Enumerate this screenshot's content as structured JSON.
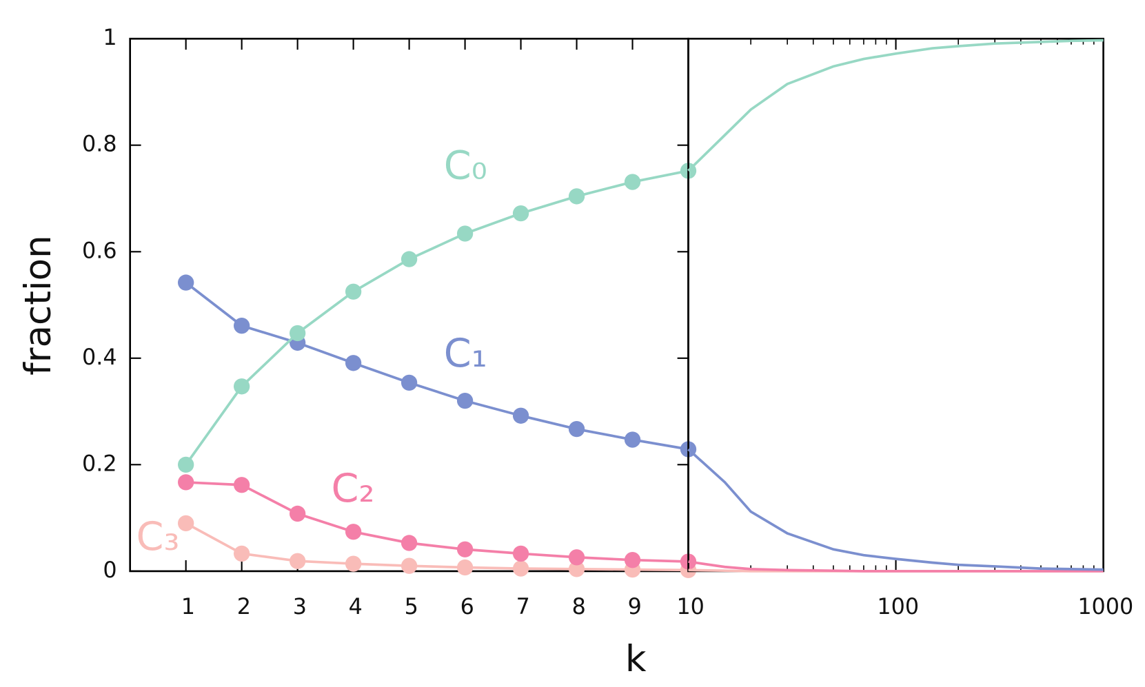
{
  "chart_data": [
    {
      "type": "line",
      "markers": true,
      "xlabel": "k",
      "ylabel": "fraction",
      "x": [
        1,
        2,
        3,
        4,
        5,
        6,
        7,
        8,
        9,
        10
      ],
      "xlim": [
        0,
        10
      ],
      "xticks": [
        1,
        2,
        3,
        4,
        5,
        6,
        7,
        8,
        9,
        10
      ],
      "ylim": [
        0,
        1
      ],
      "yticks": [
        0,
        0.2,
        0.4,
        0.6,
        0.8,
        1
      ],
      "grid": false,
      "series": [
        {
          "name": "C₀",
          "color": "#97d8c4",
          "values": [
            0.2,
            0.347,
            0.447,
            0.525,
            0.586,
            0.634,
            0.672,
            0.704,
            0.731,
            0.752
          ]
        },
        {
          "name": "C₁",
          "color": "#7b8fcf",
          "values": [
            0.542,
            0.461,
            0.429,
            0.391,
            0.354,
            0.32,
            0.292,
            0.267,
            0.247,
            0.229
          ]
        },
        {
          "name": "C₂",
          "color": "#f47fa8",
          "values": [
            0.167,
            0.162,
            0.108,
            0.074,
            0.053,
            0.041,
            0.033,
            0.026,
            0.021,
            0.018
          ]
        },
        {
          "name": "C₃",
          "color": "#f9bcb8",
          "values": [
            0.09,
            0.033,
            0.019,
            0.014,
            0.01,
            0.007,
            0.005,
            0.004,
            0.003,
            0.002
          ]
        }
      ]
    },
    {
      "type": "line",
      "markers": false,
      "log_x": true,
      "x": [
        10,
        15,
        20,
        30,
        50,
        70,
        100,
        150,
        200,
        300,
        500,
        700,
        1000
      ],
      "xlim": [
        10,
        1000
      ],
      "xticks": [
        100,
        1000
      ],
      "ylim": [
        0,
        1
      ],
      "grid": false,
      "series": [
        {
          "color": "#97d8c4",
          "values": [
            0.752,
            0.819,
            0.867,
            0.915,
            0.948,
            0.962,
            0.972,
            0.982,
            0.986,
            0.991,
            0.994,
            0.996,
            0.997
          ]
        },
        {
          "color": "#7b8fcf",
          "values": [
            0.229,
            0.167,
            0.112,
            0.071,
            0.041,
            0.03,
            0.023,
            0.016,
            0.012,
            0.009,
            0.005,
            0.004,
            0.003
          ]
        },
        {
          "color": "#f47fa8",
          "values": [
            0.018,
            0.008,
            0.004,
            0.002,
            0.001,
            0,
            0,
            0,
            0,
            0,
            0,
            0,
            0
          ]
        },
        {
          "color": "#f9bcb8",
          "values": [
            0.002,
            0.001,
            0,
            0,
            0,
            0,
            0,
            0,
            0,
            0,
            0,
            0,
            0
          ]
        }
      ]
    }
  ]
}
